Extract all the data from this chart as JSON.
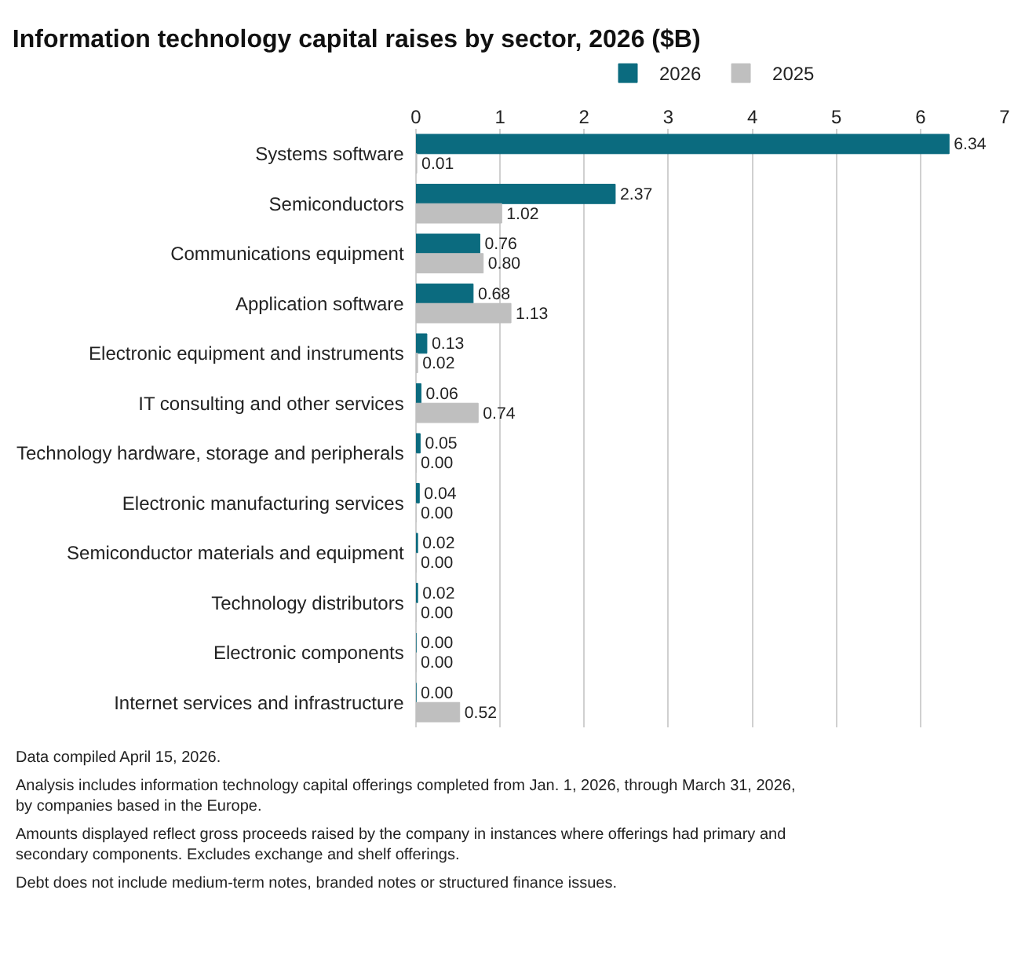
{
  "chart_data": {
    "type": "bar",
    "orientation": "horizontal",
    "title": "Information technology capital raises by sector, 2026 ($B)",
    "categories": [
      "Systems software",
      "Semiconductors",
      "Communications equipment",
      "Application software",
      "Electronic equipment and instruments",
      "IT consulting and other services",
      "Technology hardware, storage and peripherals",
      "Electronic manufacturing services",
      "Semiconductor materials and equipment",
      "Technology distributors",
      "Electronic components",
      "Internet services and infrastructure"
    ],
    "series": [
      {
        "name": "2026",
        "color": "#0b6b7f",
        "values": [
          6.34,
          2.37,
          0.76,
          0.68,
          0.13,
          0.06,
          0.05,
          0.04,
          0.02,
          0.02,
          0.0,
          0.0
        ],
        "value_labels": [
          "6.34",
          "2.37",
          "0.76",
          "0.68",
          "0.13",
          "0.06",
          "0.05",
          "0.04",
          "0.02",
          "0.02",
          "0.00",
          "0.00"
        ]
      },
      {
        "name": "2025",
        "color": "#bfbfbf",
        "values": [
          0.01,
          1.02,
          0.8,
          1.13,
          0.02,
          0.74,
          0.0,
          0.0,
          0.0,
          0.0,
          0.0,
          0.52
        ],
        "value_labels": [
          "0.01",
          "1.02",
          "0.80",
          "1.13",
          "0.02",
          "0.74",
          "0.00",
          "0.00",
          "0.00",
          "0.00",
          "0.00",
          "0.52"
        ]
      }
    ],
    "xlim": [
      0,
      7
    ],
    "xticks": [
      0,
      1,
      2,
      3,
      4,
      5,
      6,
      7
    ],
    "grid": "x",
    "legend": "top",
    "annotations": [
      "Data compiled April 15, 2026.",
      "Analysis includes information technology capital offerings completed from Jan. 1, 2026, through March 31, 2026, by companies based in the Europe.",
      "Amounts displayed reflect gross proceeds raised by the company in instances where offerings had primary and secondary components. Excludes exchange and shelf offerings.",
      "Debt does not include medium-term notes, branded notes or structured finance issues."
    ]
  }
}
